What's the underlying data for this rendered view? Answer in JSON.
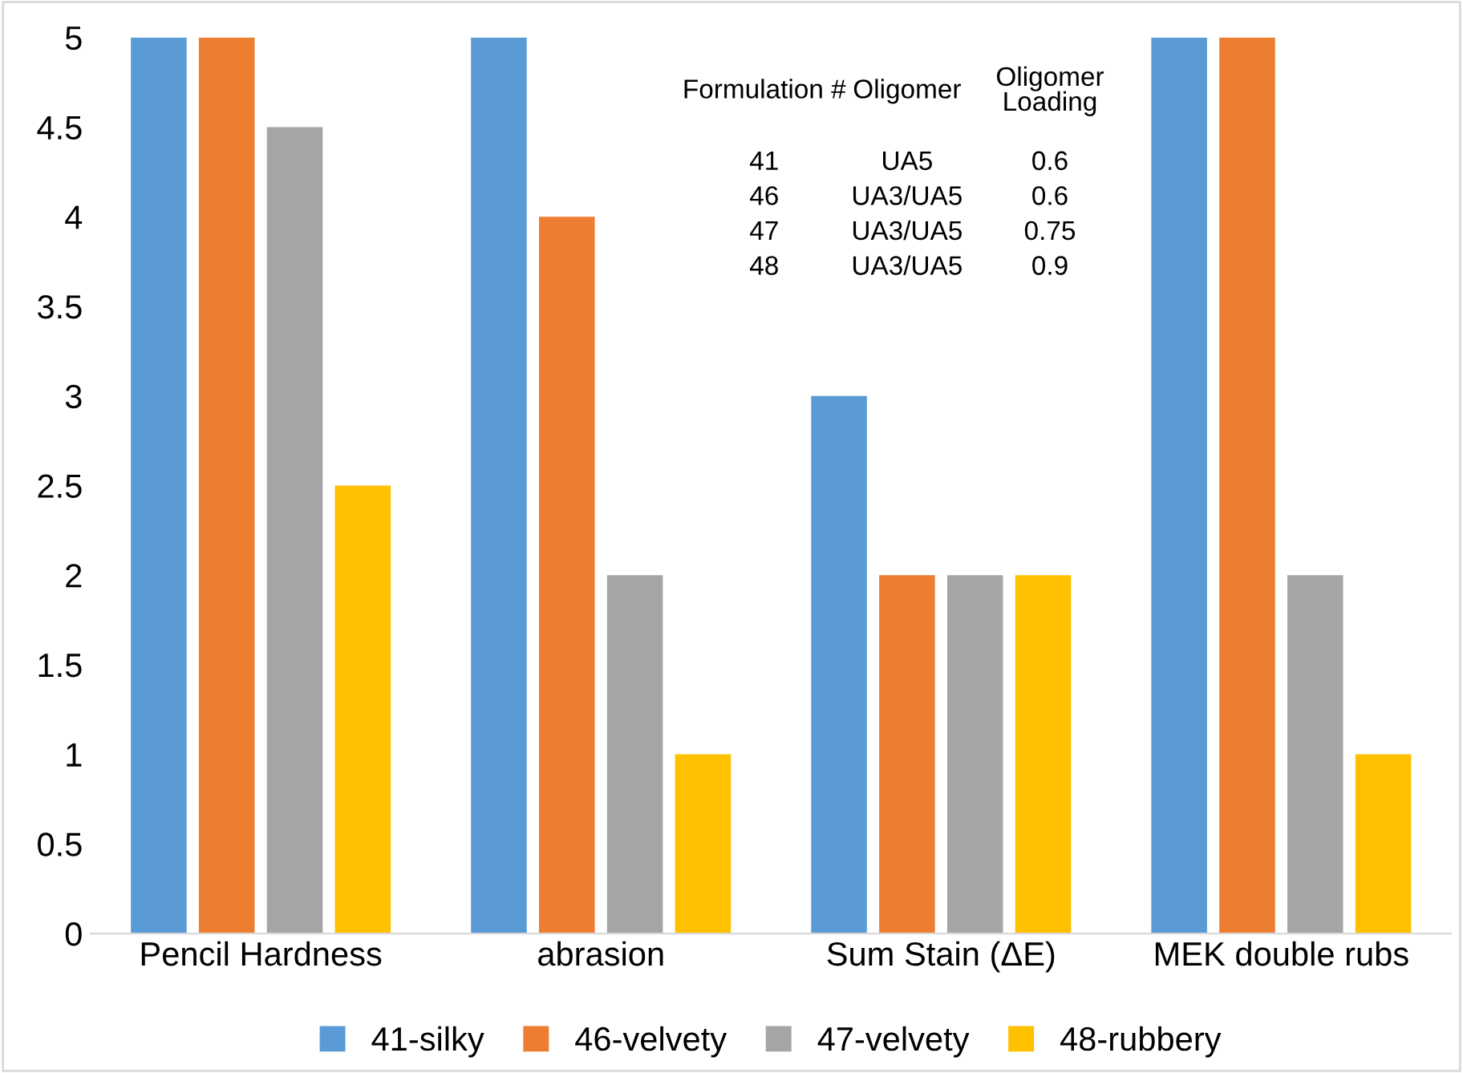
{
  "chart_data": {
    "type": "bar",
    "categories": [
      "Pencil Hardness",
      "abrasion",
      "Sum Stain (ΔE)",
      "MEK double rubs"
    ],
    "series": [
      {
        "name": "41-silky",
        "color": "#5b9bd5",
        "values": [
          5,
          5,
          3,
          5
        ]
      },
      {
        "name": "46-velvety",
        "color": "#ed7d31",
        "values": [
          5,
          4,
          2,
          5
        ]
      },
      {
        "name": "47-velvety",
        "color": "#a5a5a5",
        "values": [
          4.5,
          2,
          2,
          2
        ]
      },
      {
        "name": "48-rubbery",
        "color": "#ffc000",
        "values": [
          2.5,
          1,
          2,
          1
        ]
      }
    ],
    "ylim": [
      0,
      5
    ],
    "yticks": [
      0,
      0.5,
      1,
      1.5,
      2,
      2.5,
      3,
      3.5,
      4,
      4.5,
      5
    ],
    "grid": false,
    "legend": "bottom",
    "annotations": [
      "Formulation #",
      "Oligomer",
      "Oligomer\nLoading",
      "41",
      "UA5",
      "0.6",
      "46",
      "UA3/UA5",
      "0.6",
      "47",
      "UA3/UA5",
      "0.75",
      "48",
      "UA3/UA5",
      "0.9"
    ]
  }
}
